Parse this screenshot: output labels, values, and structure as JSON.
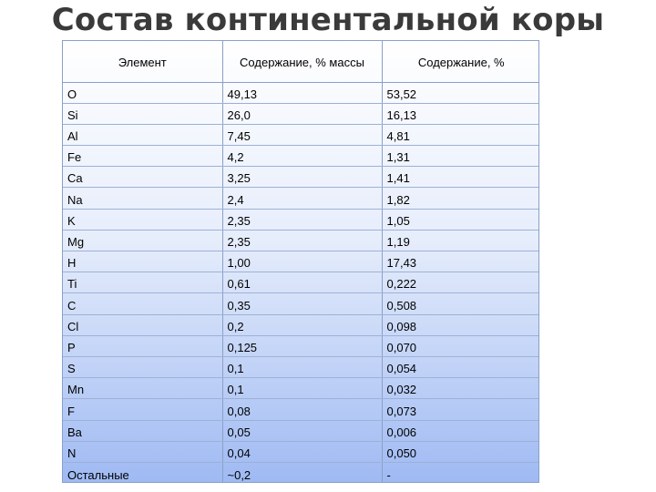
{
  "title": "Состав континентальной коры",
  "table": {
    "headers": [
      "Элемент",
      "Содержание, % массы",
      "Содержание, %"
    ],
    "rows": [
      {
        "element": "O",
        "mass": "49,13",
        "pct": "53,52"
      },
      {
        "element": "Si",
        "mass": "26,0",
        "pct": "16,13"
      },
      {
        "element": "Al",
        "mass": "7,45",
        "pct": "4,81"
      },
      {
        "element": "Fe",
        "mass": "4,2",
        "pct": "1,31"
      },
      {
        "element": "Ca",
        "mass": "3,25",
        "pct": "1,41"
      },
      {
        "element": "Na",
        "mass": "2,4",
        "pct": "1,82"
      },
      {
        "element": "K",
        "mass": "2,35",
        "pct": "1,05"
      },
      {
        "element": "Mg",
        "mass": "2,35",
        "pct": "1,19"
      },
      {
        "element": "H",
        "mass": "1,00",
        "pct": "17,43"
      },
      {
        "element": "Ti",
        "mass": "0,61",
        "pct": "0,222"
      },
      {
        "element": "C",
        "mass": "0,35",
        "pct": "0,508"
      },
      {
        "element": "Cl",
        "mass": "0,2",
        "pct": "0,098"
      },
      {
        "element": "P",
        "mass": "0,125",
        "pct": "0,070"
      },
      {
        "element": "S",
        "mass": "0,1",
        "pct": "0,054"
      },
      {
        "element": "Mn",
        "mass": "0,1",
        "pct": "0,032"
      },
      {
        "element": "F",
        "mass": "0,08",
        "pct": "0,073"
      },
      {
        "element": "Ba",
        "mass": "0,05",
        "pct": "0,006"
      },
      {
        "element": "N",
        "mass": "0,04",
        "pct": "0,050"
      },
      {
        "element": "Остальные",
        "mass": "~0,2",
        "pct": "-"
      }
    ]
  },
  "colors": {
    "title": "#3a3a3a",
    "table_border": "#8aa0c8",
    "gradient_top": "#ffffff",
    "gradient_bottom": "#9fbaf3"
  }
}
